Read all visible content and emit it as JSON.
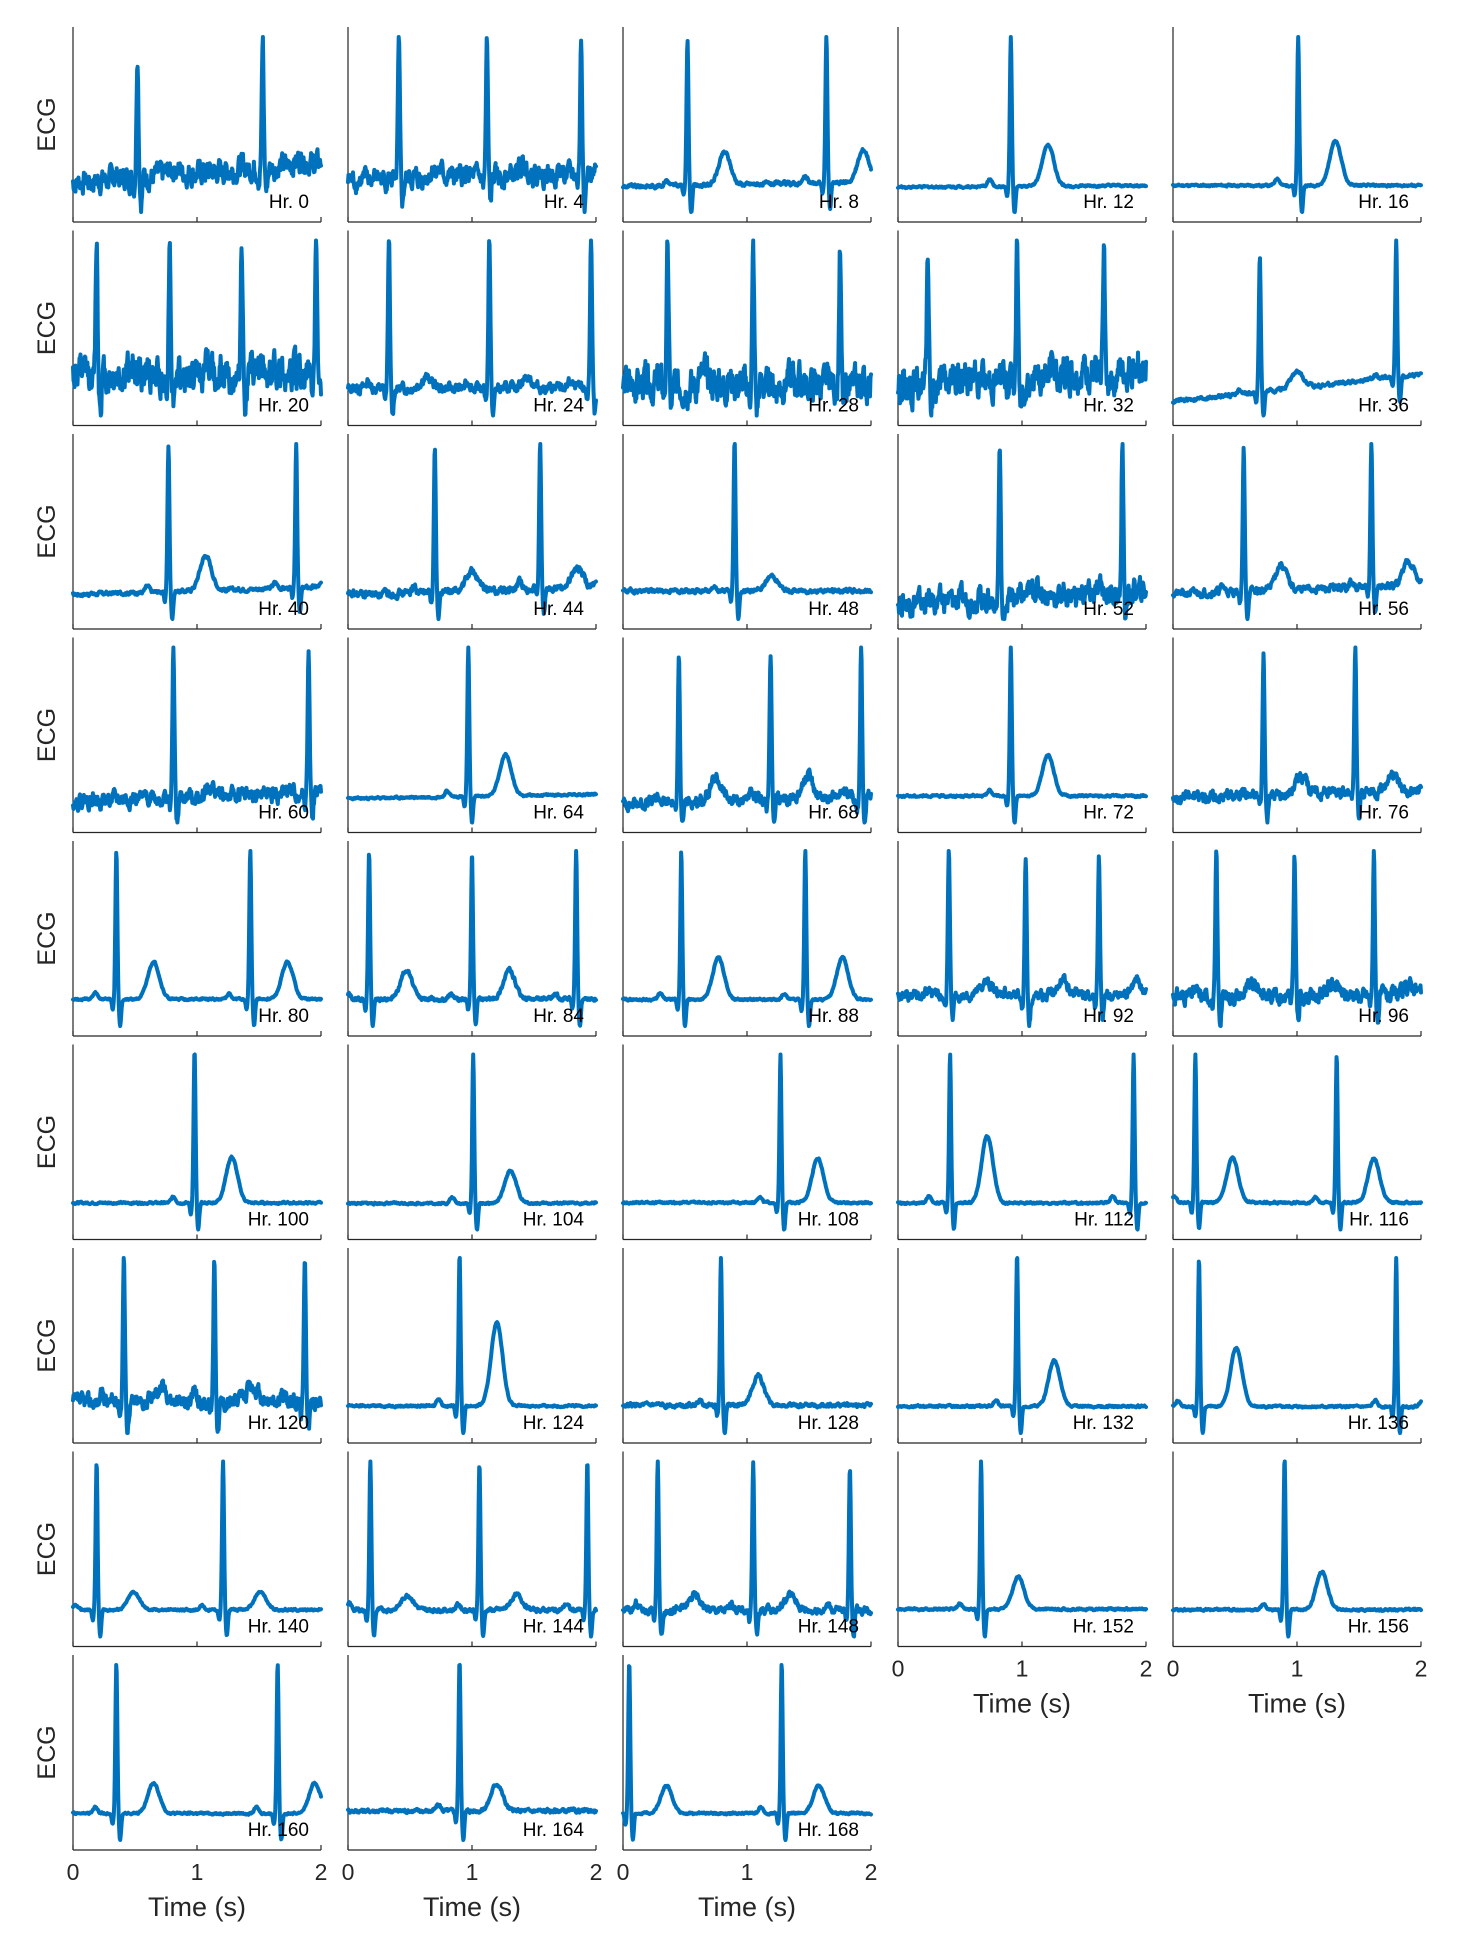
{
  "colors": {
    "trace": "#0072BD",
    "axis": "#262626"
  },
  "chart_data": {
    "type": "line",
    "layout": {
      "rows": 9,
      "cols": 5
    },
    "ylabel": "ECG",
    "xlabel": "Time (s)",
    "xlim": [
      0,
      2
    ],
    "xticks": [
      0,
      1,
      2
    ],
    "panels": [
      {
        "label": "Hr. 0",
        "beats": [
          0.52,
          1.53
        ],
        "noise": 0.07,
        "tw": 0.05,
        "pw": 0.03,
        "wander": 0.15
      },
      {
        "label": "Hr. 4",
        "beats": [
          0.41,
          1.12,
          1.88
        ],
        "noise": 0.06,
        "tw": 0.07,
        "pw": 0.03,
        "wander": 0.05
      },
      {
        "label": "Hr. 8",
        "beats": [
          0.52,
          1.64
        ],
        "noise": 0.01,
        "tw": 0.22,
        "pw": 0.04,
        "wander": 0.03
      },
      {
        "label": "Hr. 12",
        "beats": [
          0.91
        ],
        "noise": 0.005,
        "tw": 0.28,
        "pw": 0.05,
        "wander": 0.01
      },
      {
        "label": "Hr. 16",
        "beats": [
          1.01
        ],
        "noise": 0.005,
        "tw": 0.3,
        "pw": 0.05,
        "wander": 0.0
      },
      {
        "label": "Hr. 20",
        "beats": [
          0.19,
          0.78,
          1.36,
          1.96
        ],
        "noise": 0.1,
        "tw": 0.05,
        "pw": 0.03,
        "wander": 0.0
      },
      {
        "label": "Hr. 24",
        "beats": [
          0.33,
          1.14,
          1.96
        ],
        "noise": 0.025,
        "tw": 0.07,
        "pw": 0.04,
        "wander": 0.0
      },
      {
        "label": "Hr. 28",
        "beats": [
          0.36,
          1.05,
          1.75
        ],
        "noise": 0.1,
        "tw": 0.05,
        "pw": 0.03,
        "wander": 0.0
      },
      {
        "label": "Hr. 32",
        "beats": [
          0.24,
          0.96,
          1.66
        ],
        "noise": 0.1,
        "tw": 0.05,
        "pw": 0.03,
        "wander": 0.1
      },
      {
        "label": "Hr. 36",
        "beats": [
          0.7,
          1.8
        ],
        "noise": 0.01,
        "tw": 0.12,
        "pw": 0.03,
        "wander": 0.2
      },
      {
        "label": "Hr. 40",
        "beats": [
          0.77,
          1.8
        ],
        "noise": 0.01,
        "tw": 0.24,
        "pw": 0.04,
        "wander": 0.05
      },
      {
        "label": "Hr. 44",
        "beats": [
          0.7,
          1.55
        ],
        "noise": 0.02,
        "tw": 0.14,
        "pw": 0.05,
        "wander": 0.05
      },
      {
        "label": "Hr. 48",
        "beats": [
          0.9
        ],
        "noise": 0.01,
        "tw": 0.1,
        "pw": 0.03,
        "wander": 0.0
      },
      {
        "label": "Hr. 52",
        "beats": [
          0.82,
          1.81
        ],
        "noise": 0.06,
        "tw": 0.06,
        "pw": 0.03,
        "wander": 0.08
      },
      {
        "label": "Hr. 56",
        "beats": [
          0.57,
          1.6
        ],
        "noise": 0.02,
        "tw": 0.18,
        "pw": 0.04,
        "wander": 0.06
      },
      {
        "label": "Hr. 60",
        "beats": [
          0.81,
          1.9
        ],
        "noise": 0.04,
        "tw": 0.06,
        "pw": 0.03,
        "wander": 0.05
      },
      {
        "label": "Hr. 64",
        "beats": [
          0.97
        ],
        "noise": 0.005,
        "tw": 0.28,
        "pw": 0.04,
        "wander": 0.03
      },
      {
        "label": "Hr. 68",
        "beats": [
          0.45,
          1.19,
          1.92
        ],
        "noise": 0.03,
        "tw": 0.14,
        "pw": 0.04,
        "wander": 0.05
      },
      {
        "label": "Hr. 72",
        "beats": [
          0.91
        ],
        "noise": 0.005,
        "tw": 0.28,
        "pw": 0.04,
        "wander": 0.0
      },
      {
        "label": "Hr. 76",
        "beats": [
          0.73,
          1.47
        ],
        "noise": 0.03,
        "tw": 0.12,
        "pw": 0.04,
        "wander": 0.05
      },
      {
        "label": "Hr. 80",
        "beats": [
          0.35,
          1.43
        ],
        "noise": 0.005,
        "tw": 0.25,
        "pw": 0.04,
        "wander": 0.0
      },
      {
        "label": "Hr. 84",
        "beats": [
          0.17,
          1.0,
          1.84
        ],
        "noise": 0.01,
        "tw": 0.2,
        "pw": 0.04,
        "wander": 0.0
      },
      {
        "label": "Hr. 88",
        "beats": [
          0.47,
          1.47
        ],
        "noise": 0.005,
        "tw": 0.28,
        "pw": 0.04,
        "wander": 0.0
      },
      {
        "label": "Hr. 92",
        "beats": [
          0.41,
          1.03,
          1.62
        ],
        "noise": 0.03,
        "tw": 0.1,
        "pw": 0.04,
        "wander": 0.0
      },
      {
        "label": "Hr. 96",
        "beats": [
          0.35,
          0.98,
          1.62
        ],
        "noise": 0.04,
        "tw": 0.08,
        "pw": 0.03,
        "wander": 0.0
      },
      {
        "label": "Hr. 100",
        "beats": [
          0.98
        ],
        "noise": 0.005,
        "tw": 0.3,
        "pw": 0.04,
        "wander": 0.0
      },
      {
        "label": "Hr. 104",
        "beats": [
          1.01
        ],
        "noise": 0.005,
        "tw": 0.22,
        "pw": 0.04,
        "wander": 0.0
      },
      {
        "label": "Hr. 108",
        "beats": [
          1.27
        ],
        "noise": 0.005,
        "tw": 0.3,
        "pw": 0.04,
        "wander": 0.0
      },
      {
        "label": "Hr. 112",
        "beats": [
          0.42,
          1.9
        ],
        "noise": 0.005,
        "tw": 0.45,
        "pw": 0.05,
        "wander": 0.0
      },
      {
        "label": "Hr. 116",
        "beats": [
          0.18,
          1.32
        ],
        "noise": 0.005,
        "tw": 0.3,
        "pw": 0.04,
        "wander": 0.0
      },
      {
        "label": "Hr. 120",
        "beats": [
          0.41,
          1.14,
          1.87
        ],
        "noise": 0.04,
        "tw": 0.1,
        "pw": 0.05,
        "wander": 0.0
      },
      {
        "label": "Hr. 124",
        "beats": [
          0.9
        ],
        "noise": 0.005,
        "tw": 0.55,
        "pw": 0.05,
        "wander": 0.0
      },
      {
        "label": "Hr. 128",
        "beats": [
          0.79
        ],
        "noise": 0.01,
        "tw": 0.2,
        "pw": 0.04,
        "wander": 0.0
      },
      {
        "label": "Hr. 132",
        "beats": [
          0.96
        ],
        "noise": 0.005,
        "tw": 0.3,
        "pw": 0.04,
        "wander": 0.0
      },
      {
        "label": "Hr. 136",
        "beats": [
          0.21,
          1.8
        ],
        "noise": 0.005,
        "tw": 0.4,
        "pw": 0.04,
        "wander": 0.0
      },
      {
        "label": "Hr. 140",
        "beats": [
          0.19,
          1.21
        ],
        "noise": 0.005,
        "tw": 0.12,
        "pw": 0.03,
        "wander": 0.0
      },
      {
        "label": "Hr. 144",
        "beats": [
          0.18,
          1.06,
          1.93
        ],
        "noise": 0.01,
        "tw": 0.1,
        "pw": 0.04,
        "wander": 0.0
      },
      {
        "label": "Hr. 148",
        "beats": [
          0.28,
          1.05,
          1.83
        ],
        "noise": 0.02,
        "tw": 0.1,
        "pw": 0.04,
        "wander": 0.0
      },
      {
        "label": "Hr. 152",
        "beats": [
          0.67
        ],
        "noise": 0.005,
        "tw": 0.22,
        "pw": 0.04,
        "wander": 0.0
      },
      {
        "label": "Hr. 156",
        "beats": [
          0.9
        ],
        "noise": 0.005,
        "tw": 0.25,
        "pw": 0.04,
        "wander": 0.0
      },
      {
        "label": "Hr. 160",
        "beats": [
          0.35,
          1.65
        ],
        "noise": 0.005,
        "tw": 0.2,
        "pw": 0.04,
        "wander": 0.0
      },
      {
        "label": "Hr. 164",
        "beats": [
          0.9
        ],
        "noise": 0.01,
        "tw": 0.18,
        "pw": 0.04,
        "wander": 0.0
      },
      {
        "label": "Hr. 168",
        "beats": [
          0.05,
          1.28
        ],
        "noise": 0.005,
        "tw": 0.18,
        "pw": 0.04,
        "wander": 0.0
      }
    ]
  }
}
